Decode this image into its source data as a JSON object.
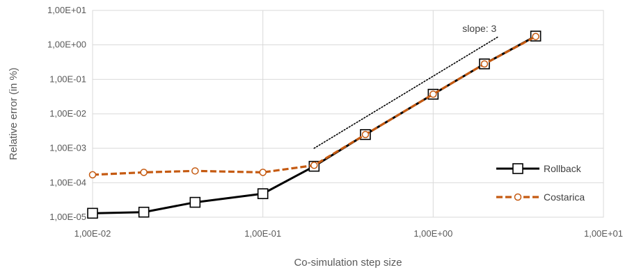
{
  "chart_data": {
    "type": "line",
    "xlabel": "Co-simulation step size",
    "ylabel": "Relative error (in %)",
    "xscale": "log",
    "yscale": "log",
    "xlim": [
      0.01,
      10
    ],
    "ylim": [
      1e-05,
      10
    ],
    "x_ticks": [
      0.01,
      0.1,
      1,
      10
    ],
    "x_tick_labels": [
      "1,00E-02",
      "1,00E-01",
      "1,00E+00",
      "1,00E+01"
    ],
    "y_ticks": [
      10,
      1,
      0.1,
      0.01,
      0.001,
      0.0001,
      1e-05
    ],
    "y_tick_labels": [
      "1,00E+01",
      "1,00E+00",
      "1,00E-01",
      "1,00E-02",
      "1,00E-03",
      "1,00E-04",
      "1,00E-05"
    ],
    "grid": true,
    "legend_position": "bottom-right",
    "series": [
      {
        "name": "Rollback",
        "color": "#000000",
        "line_style": "solid",
        "marker": "open-square",
        "x": [
          0.01,
          0.02,
          0.04,
          0.1,
          0.2,
          0.4,
          1,
          2,
          4
        ],
        "y": [
          1.3e-05,
          1.4e-05,
          2.7e-05,
          4.8e-05,
          0.0003,
          0.0025,
          0.037,
          0.28,
          1.8
        ]
      },
      {
        "name": "Costarica",
        "color": "#C55A11",
        "line_style": "dashed",
        "marker": "open-circle",
        "x": [
          0.01,
          0.02,
          0.04,
          0.1,
          0.2,
          0.4,
          1,
          2,
          4
        ],
        "y": [
          0.00017,
          0.0002,
          0.00022,
          0.0002,
          0.00032,
          0.0025,
          0.037,
          0.28,
          1.75
        ]
      }
    ],
    "annotations": [
      {
        "text": "slope: 3",
        "reference_line": {
          "x": [
            0.2,
            2.4
          ],
          "y": [
            0.001,
            1.7
          ],
          "style": "dotted"
        }
      }
    ]
  }
}
